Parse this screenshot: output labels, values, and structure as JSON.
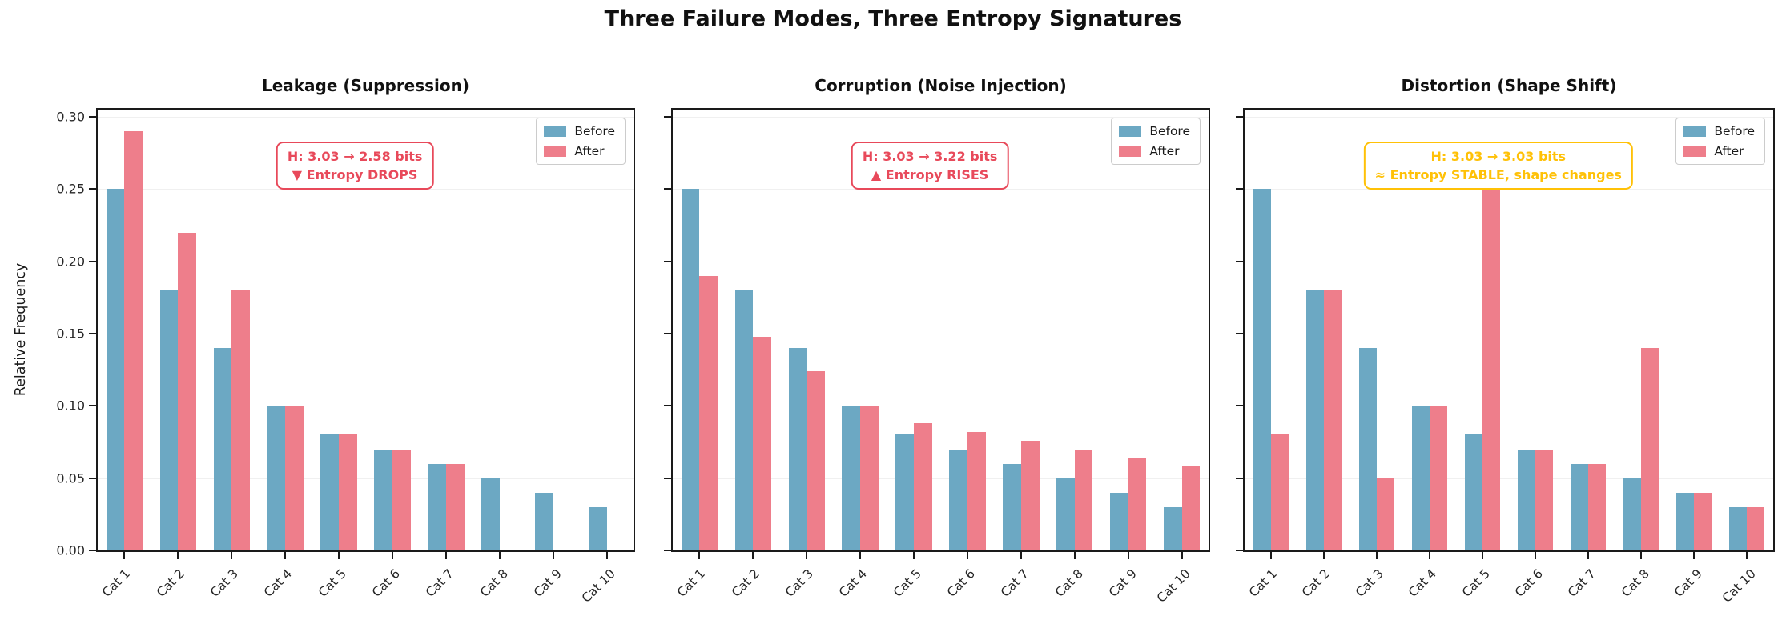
{
  "figure_title": "Three Failure Modes, Three Entropy Signatures",
  "ylabel": "Relative Frequency",
  "yticks": [
    "0.00",
    "0.05",
    "0.10",
    "0.15",
    "0.20",
    "0.25",
    "0.30"
  ],
  "categories": [
    "Cat 1",
    "Cat 2",
    "Cat 3",
    "Cat 4",
    "Cat 5",
    "Cat 6",
    "Cat 7",
    "Cat 8",
    "Cat 9",
    "Cat 10"
  ],
  "colors": {
    "before": "#6CA8C3",
    "after": "#EE7E8B",
    "alert_red": "#E8495A",
    "alert_gold": "#FFC107",
    "axis": "#1a1a1a",
    "grid": "#f0f0f0"
  },
  "legend": {
    "items": [
      {
        "label": "Before",
        "color_key": "before"
      },
      {
        "label": "After",
        "color_key": "after"
      }
    ]
  },
  "chart_data": [
    {
      "type": "bar",
      "title": "Leakage (Suppression)",
      "categories": [
        "Cat 1",
        "Cat 2",
        "Cat 3",
        "Cat 4",
        "Cat 5",
        "Cat 6",
        "Cat 7",
        "Cat 8",
        "Cat 9",
        "Cat 10"
      ],
      "series": [
        {
          "name": "Before",
          "values": [
            0.25,
            0.18,
            0.14,
            0.1,
            0.08,
            0.07,
            0.06,
            0.05,
            0.04,
            0.03
          ]
        },
        {
          "name": "After",
          "values": [
            0.29,
            0.22,
            0.18,
            0.1,
            0.08,
            0.07,
            0.06,
            0.0,
            0.0,
            0.0
          ]
        }
      ],
      "xlabel": "",
      "ylabel": "Relative Frequency",
      "ylim": [
        0,
        0.305
      ],
      "grid": true,
      "legend_position": "upper right",
      "annotation": {
        "line1": "H: 3.03 → 2.58 bits",
        "line2": "▼ Entropy DROPS",
        "color": "#E8495A"
      }
    },
    {
      "type": "bar",
      "title": "Corruption (Noise Injection)",
      "categories": [
        "Cat 1",
        "Cat 2",
        "Cat 3",
        "Cat 4",
        "Cat 5",
        "Cat 6",
        "Cat 7",
        "Cat 8",
        "Cat 9",
        "Cat 10"
      ],
      "series": [
        {
          "name": "Before",
          "values": [
            0.25,
            0.18,
            0.14,
            0.1,
            0.08,
            0.07,
            0.06,
            0.05,
            0.04,
            0.03
          ]
        },
        {
          "name": "After",
          "values": [
            0.19,
            0.148,
            0.124,
            0.1,
            0.088,
            0.082,
            0.076,
            0.07,
            0.064,
            0.058
          ]
        }
      ],
      "xlabel": "",
      "ylabel": "Relative Frequency",
      "ylim": [
        0,
        0.305
      ],
      "grid": true,
      "legend_position": "upper right",
      "annotation": {
        "line1": "H: 3.03 → 3.22 bits",
        "line2": "▲ Entropy RISES",
        "color": "#E8495A"
      }
    },
    {
      "type": "bar",
      "title": "Distortion (Shape Shift)",
      "categories": [
        "Cat 1",
        "Cat 2",
        "Cat 3",
        "Cat 4",
        "Cat 5",
        "Cat 6",
        "Cat 7",
        "Cat 8",
        "Cat 9",
        "Cat 10"
      ],
      "series": [
        {
          "name": "Before",
          "values": [
            0.25,
            0.18,
            0.14,
            0.1,
            0.08,
            0.07,
            0.06,
            0.05,
            0.04,
            0.03
          ]
        },
        {
          "name": "After",
          "values": [
            0.08,
            0.18,
            0.05,
            0.1,
            0.25,
            0.07,
            0.06,
            0.14,
            0.04,
            0.03
          ]
        }
      ],
      "xlabel": "",
      "ylabel": "Relative Frequency",
      "ylim": [
        0,
        0.305
      ],
      "grid": true,
      "legend_position": "upper right",
      "annotation": {
        "line1": "H: 3.03 → 3.03 bits",
        "line2": "≈ Entropy STABLE, shape changes",
        "color": "#FFC107"
      }
    }
  ]
}
